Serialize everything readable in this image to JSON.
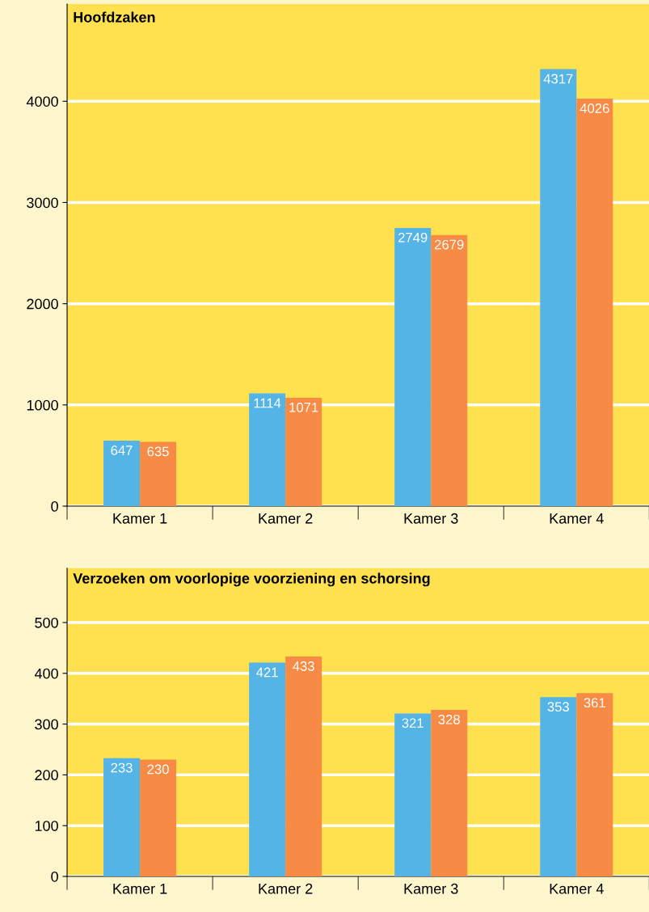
{
  "chart_data": [
    {
      "type": "bar",
      "title": "Hoofdzaken",
      "categories": [
        "Kamer 1",
        "Kamer 2",
        "Kamer 3",
        "Kamer 4"
      ],
      "series": [
        {
          "color": "#55b4e6",
          "values": [
            647,
            1114,
            2749,
            4317
          ]
        },
        {
          "color": "#f78b45",
          "values": [
            635,
            1071,
            2679,
            4026
          ]
        }
      ],
      "ylim": [
        0,
        4960
      ],
      "yticks": [
        0,
        1000,
        2000,
        3000,
        4000
      ],
      "grid": "y",
      "data_labels": true
    },
    {
      "type": "bar",
      "title": "Verzoeken om voorlopige voorziening en schorsing",
      "categories": [
        "Kamer 1",
        "Kamer 2",
        "Kamer 3",
        "Kamer 4"
      ],
      "series": [
        {
          "color": "#55b4e6",
          "values": [
            233,
            421,
            321,
            353
          ]
        },
        {
          "color": "#f78b45",
          "values": [
            230,
            433,
            328,
            361
          ]
        }
      ],
      "ylim": [
        0,
        607
      ],
      "yticks": [
        0,
        100,
        200,
        300,
        400,
        500
      ],
      "grid": "y",
      "data_labels": true
    }
  ]
}
